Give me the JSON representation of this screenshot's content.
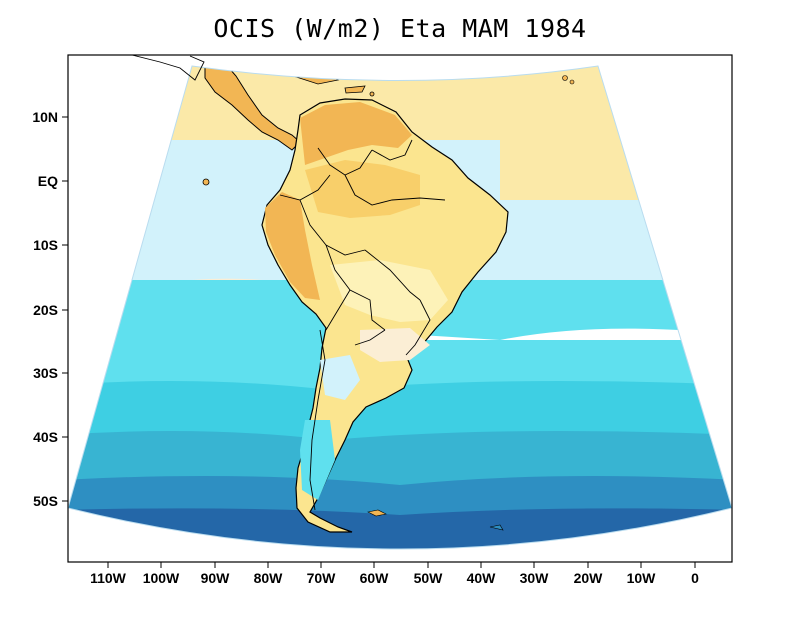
{
  "title": "OCIS (W/m2) Eta MAM 1984",
  "latitude_labels": [
    "10N",
    "EQ",
    "10S",
    "20S",
    "30S",
    "40S",
    "50S"
  ],
  "longitude_labels": [
    "110W",
    "100W",
    "90W",
    "80W",
    "70W",
    "60W",
    "50W",
    "40W",
    "30W",
    "20W",
    "10W",
    "0"
  ],
  "colors": {
    "land_dark": "#f2b654",
    "land_mid": "#f8cf6a",
    "land_light": "#fbe58f",
    "land_pale": "#fdf2b8",
    "desert_pale": "#fbeed5",
    "ocean_pale_yellow": "#fbe9a8",
    "ocean_light_blue": "#d2f2fb",
    "ocean_cyan": "#5fe0ee",
    "ocean_mid": "#3ecfe3",
    "ocean_teal": "#38b4d2",
    "ocean_blue": "#2e8fc2",
    "ocean_deep": "#2467a8"
  }
}
